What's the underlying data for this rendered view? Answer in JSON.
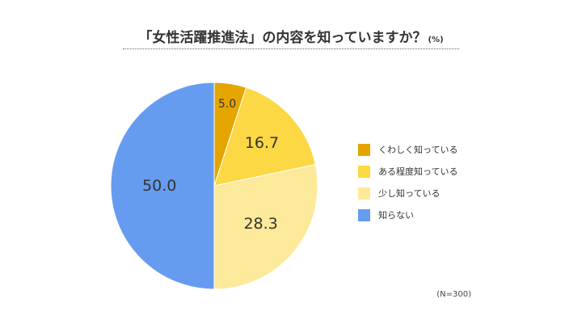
{
  "title": "「女性活躍推進法」の内容を知っていますか？",
  "unit": "(%)",
  "sample_note": "(N=300)",
  "chart_data": {
    "type": "pie",
    "categories": [
      "くわしく知っている",
      "ある程度知っている",
      "少し知っている",
      "知らない"
    ],
    "values": [
      5.0,
      16.7,
      28.3,
      50.0
    ],
    "value_labels": [
      "5.0",
      "16.7",
      "28.3",
      "50.0"
    ],
    "colors": [
      "#E4A500",
      "#FCD844",
      "#FDE99A",
      "#659CF0"
    ],
    "title": "「女性活躍推進法」の内容を知っていますか？",
    "legend_position": "right"
  }
}
